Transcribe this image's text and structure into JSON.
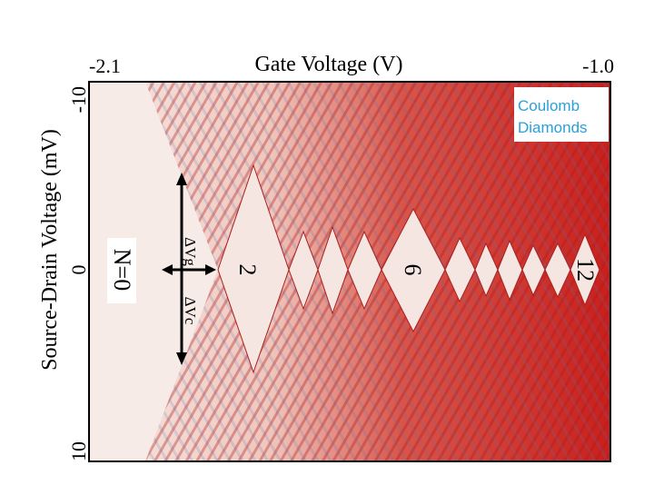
{
  "figure": {
    "x_axis": {
      "title": "Gate Voltage  (V)",
      "left_label": "-2.1",
      "right_label": "-1.0"
    },
    "y_axis": {
      "title": "Source-Drain Voltage  (mV)",
      "top_label": "-10",
      "middle_label": "0",
      "bottom_label": "10"
    },
    "legend": {
      "line1": "Coulomb",
      "line2": "Diamonds"
    },
    "annotations": {
      "n0": "N=0",
      "n2": "2",
      "n6": "6",
      "n12": "12",
      "delta_vg": "ΔVg",
      "delta_vc": "ΔVc"
    }
  }
}
